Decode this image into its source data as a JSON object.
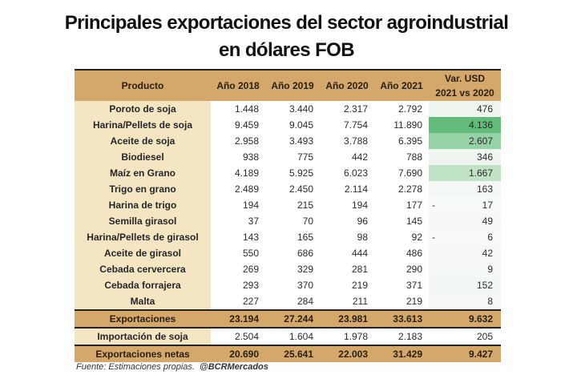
{
  "title": {
    "line1": "Principales exportaciones del sector agroindustrial",
    "line2": "en dólares FOB"
  },
  "table": {
    "headers": {
      "product": "Producto",
      "y2018": "Año 2018",
      "y2019": "Año 2019",
      "y2020": "Año 2020",
      "y2021": "Año 2021",
      "var_line1": "Var. USD",
      "var_line2": "2021 vs 2020"
    },
    "rows": [
      {
        "product": "Poroto de soja",
        "y2018": "1.448",
        "y2019": "3.440",
        "y2020": "2.317",
        "y2021": "2.792",
        "var": "476",
        "var_neg": "",
        "shade": "#eef6ef"
      },
      {
        "product": "Harina/Pellets de soja",
        "y2018": "9.459",
        "y2019": "9.045",
        "y2020": "7.754",
        "y2021": "11.890",
        "var": "4.136",
        "var_neg": "",
        "shade": "#62bb7b"
      },
      {
        "product": "Aceite de soja",
        "y2018": "2.958",
        "y2019": "3.493",
        "y2020": "3.788",
        "y2021": "6.395",
        "var": "2.607",
        "var_neg": "",
        "shade": "#97d1a6"
      },
      {
        "product": "Biodiesel",
        "y2018": "938",
        "y2019": "775",
        "y2020": "442",
        "y2021": "788",
        "var": "346",
        "var_neg": "",
        "shade": "#eff6f0"
      },
      {
        "product": "Maíz en Grano",
        "y2018": "4.189",
        "y2019": "5.925",
        "y2020": "6.023",
        "y2021": "7.690",
        "var": "1.667",
        "var_neg": "",
        "shade": "#c0e3c8"
      },
      {
        "product": "Trigo en grano",
        "y2018": "2.489",
        "y2019": "2.450",
        "y2020": "2.114",
        "y2021": "2.278",
        "var": "163",
        "var_neg": "",
        "shade": "#f3f8f4"
      },
      {
        "product": "Harina de trigo",
        "y2018": "194",
        "y2019": "215",
        "y2020": "194",
        "y2021": "177",
        "var": "17",
        "var_neg": "-",
        "shade": "#f7f9fb"
      },
      {
        "product": "Semilla girasol",
        "y2018": "37",
        "y2019": "70",
        "y2020": "96",
        "y2021": "145",
        "var": "49",
        "var_neg": "",
        "shade": "#f5f8f6"
      },
      {
        "product": "Harina/Pellets de girasol",
        "y2018": "143",
        "y2019": "165",
        "y2020": "98",
        "y2021": "92",
        "var": "6",
        "var_neg": "-",
        "shade": "#f7f9fb"
      },
      {
        "product": "Aceite de girasol",
        "y2018": "550",
        "y2019": "686",
        "y2020": "444",
        "y2021": "486",
        "var": "42",
        "var_neg": "",
        "shade": "#f5f8f6"
      },
      {
        "product": "Cebada cervercera",
        "y2018": "269",
        "y2019": "329",
        "y2020": "281",
        "y2021": "290",
        "var": "9",
        "var_neg": "",
        "shade": "#f6f8f7"
      },
      {
        "product": "Cebada forrajera",
        "y2018": "293",
        "y2019": "370",
        "y2020": "219",
        "y2021": "371",
        "var": "152",
        "var_neg": "",
        "shade": "#f2f7f3"
      },
      {
        "product": "Malta",
        "y2018": "227",
        "y2019": "284",
        "y2020": "211",
        "y2021": "219",
        "var": "8",
        "var_neg": "",
        "shade": "#f6f8f7"
      }
    ],
    "exports": {
      "product": "Exportaciones",
      "y2018": "23.194",
      "y2019": "27.244",
      "y2020": "23.981",
      "y2021": "33.613",
      "var": "9.632"
    },
    "soy_imports": {
      "product": "Importación de soja",
      "y2018": "2.504",
      "y2019": "1.604",
      "y2020": "1.978",
      "y2021": "2.183",
      "var": "205"
    },
    "net_exports": {
      "product": "Exportaciones netas",
      "y2018": "20.690",
      "y2019": "25.641",
      "y2020": "22.003",
      "y2021": "31.429",
      "var": "9.427"
    }
  },
  "footer": {
    "source": "Fuente: Estimaciones propias.",
    "handle": "@BCRMercados"
  },
  "colors": {
    "header_bg": "#d4a76a",
    "product_col_bg": "#f5e6c3",
    "positive_scale_max": "#62bb7b"
  }
}
